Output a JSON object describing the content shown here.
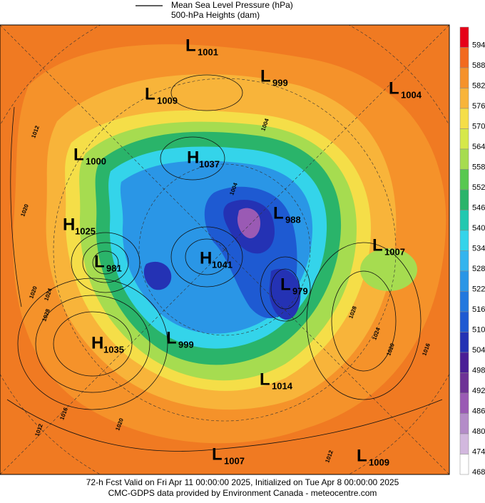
{
  "header": {
    "line_legend": "Mean Sea Level Pressure (hPa)",
    "fill_legend": "500-hPa Heights (dam)"
  },
  "colorbar": {
    "levels": [
      594,
      588,
      582,
      576,
      570,
      564,
      558,
      552,
      546,
      540,
      534,
      528,
      522,
      516,
      510,
      504,
      498,
      492,
      486,
      480,
      474,
      468
    ],
    "colors": [
      "#e60018",
      "#f26a1e",
      "#f5922a",
      "#f8b43a",
      "#f5de48",
      "#d6e84a",
      "#a6dc50",
      "#58c850",
      "#2ab46a",
      "#22c8b0",
      "#34d4ea",
      "#34b4ee",
      "#2a96e6",
      "#2278de",
      "#1e5ad2",
      "#2432b4",
      "#4a1e96",
      "#6e3296",
      "#9a5ab4",
      "#b48cc8",
      "#d2b8de",
      "#ffffff"
    ]
  },
  "centers": [
    {
      "type": "L",
      "value": 1001
    },
    {
      "type": "L",
      "value": 999
    },
    {
      "type": "L",
      "value": 1004
    },
    {
      "type": "L",
      "value": 1009
    },
    {
      "type": "L",
      "value": 1000
    },
    {
      "type": "H",
      "value": 1037
    },
    {
      "type": "H",
      "value": 1025
    },
    {
      "type": "L",
      "value": 988
    },
    {
      "type": "L",
      "value": 1007
    },
    {
      "type": "L",
      "value": 981
    },
    {
      "type": "H",
      "value": 1041
    },
    {
      "type": "L",
      "value": 979
    },
    {
      "type": "H",
      "value": 1035
    },
    {
      "type": "L",
      "value": 999
    },
    {
      "type": "L",
      "value": 1014
    },
    {
      "type": "L",
      "value": 1007
    },
    {
      "type": "L",
      "value": 1009
    }
  ],
  "contour_labels": [
    1012,
    1020,
    1020,
    1024,
    1028,
    1016,
    1012,
    1020,
    1012,
    1028,
    1024,
    1020,
    1016,
    1004,
    1004
  ],
  "footer": {
    "line1": "72-h Fcst Valid on Fri Apr 11 00:00:00 2025, Initialized on Tue Apr  8 00:00:00 2025",
    "line2": "CMC-GDPS data provided by Environment Canada - meteocentre.com"
  }
}
